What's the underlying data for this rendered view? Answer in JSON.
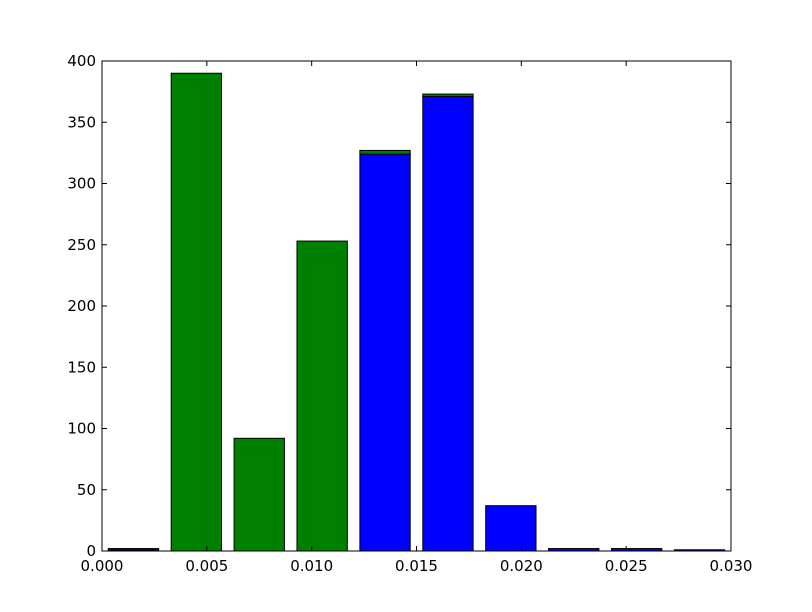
{
  "chart_data": {
    "type": "bar",
    "stacked": true,
    "title": "",
    "xlabel": "",
    "ylabel": "",
    "xlim": [
      0.0,
      0.03
    ],
    "ylim": [
      0,
      400
    ],
    "xticks": [
      0.0,
      0.005,
      0.01,
      0.015,
      0.02,
      0.025,
      0.03
    ],
    "xtick_labels": [
      "0.000",
      "0.005",
      "0.010",
      "0.015",
      "0.020",
      "0.025",
      "0.030"
    ],
    "yticks": [
      0,
      50,
      100,
      150,
      200,
      250,
      300,
      350,
      400
    ],
    "ytick_labels": [
      "0",
      "50",
      "100",
      "150",
      "200",
      "250",
      "300",
      "350",
      "400"
    ],
    "grid": false,
    "bar_centers": [
      0.0015,
      0.0045,
      0.0075,
      0.0105,
      0.0135,
      0.0165,
      0.0195,
      0.0225,
      0.0255,
      0.0285
    ],
    "bar_width": 0.0024,
    "series": [
      {
        "color": "#0000ff",
        "values": [
          1,
          0,
          0,
          0,
          324,
          371,
          37,
          2,
          2,
          1
        ]
      },
      {
        "color": "#008000",
        "values": [
          1,
          390,
          92,
          253,
          3,
          2,
          0,
          0,
          0,
          0
        ]
      }
    ]
  }
}
